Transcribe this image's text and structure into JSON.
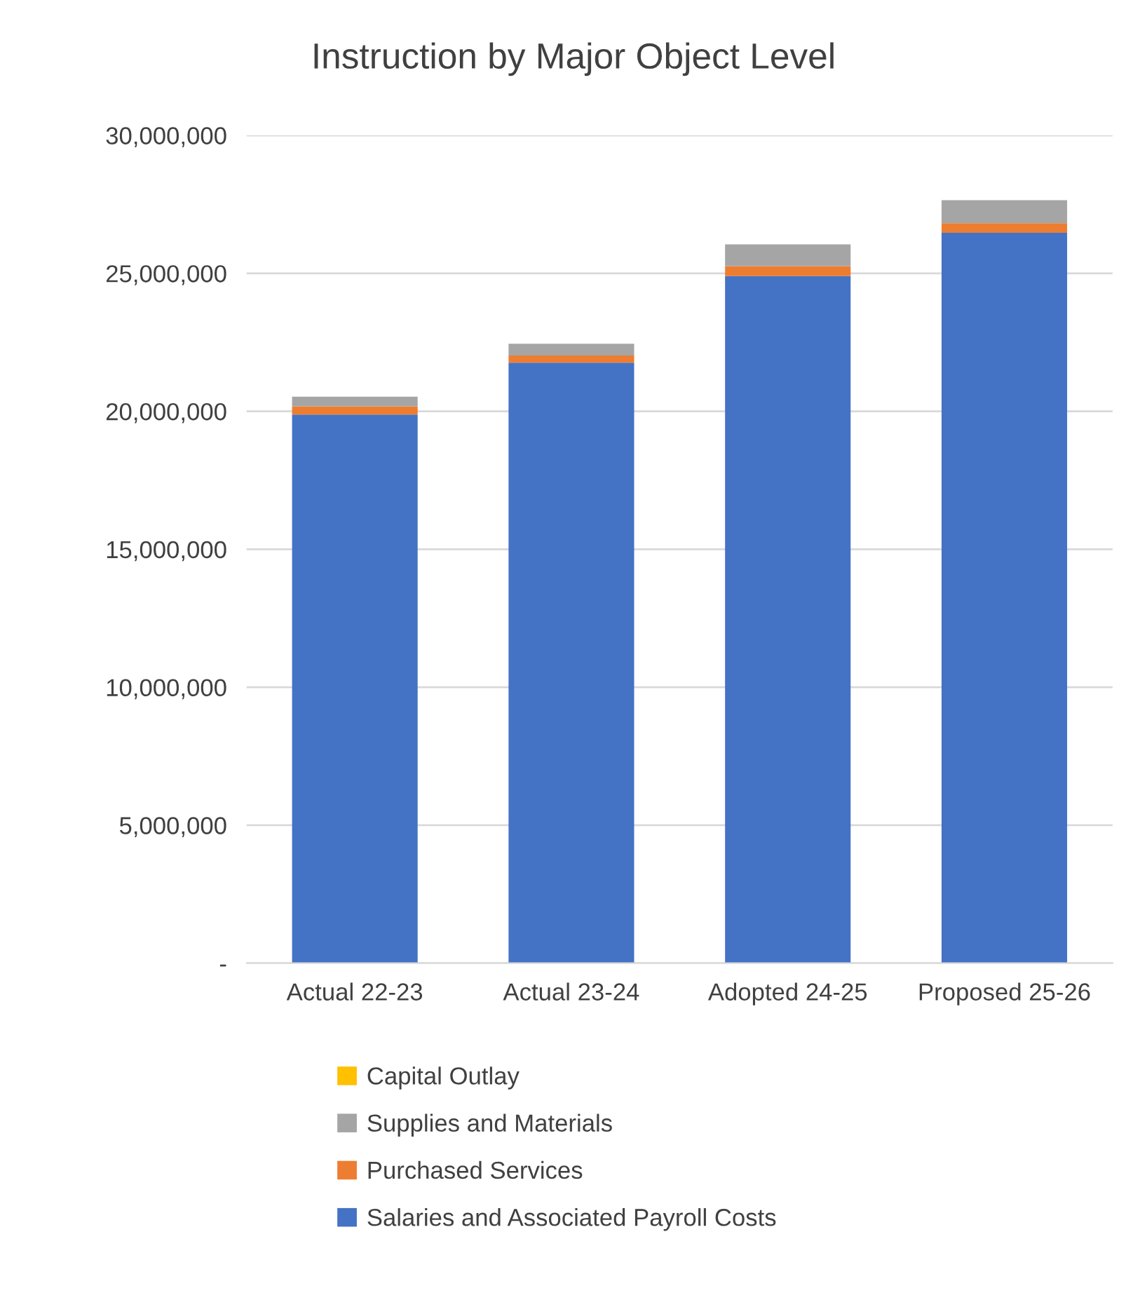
{
  "chart_data": {
    "type": "bar",
    "title": "Instruction by Major Object Level",
    "stacked": true,
    "categories": [
      "Actual 22-23",
      "Actual 23-24",
      "Adopted 24-25",
      "Proposed 25-26"
    ],
    "series": [
      {
        "name": "Salaries and Associated Payroll Costs",
        "color": "#4472c4",
        "values": [
          19880000,
          21760000,
          24900000,
          26470000
        ]
      },
      {
        "name": "Purchased Services",
        "color": "#ed7d31",
        "values": [
          300000,
          260000,
          360000,
          350000
        ]
      },
      {
        "name": "Supplies and Materials",
        "color": "#a5a5a5",
        "values": [
          350000,
          430000,
          790000,
          830000
        ]
      },
      {
        "name": "Capital Outlay",
        "color": "#ffc000",
        "values": [
          0,
          0,
          0,
          0
        ]
      }
    ],
    "ylim": [
      0,
      30000000
    ],
    "yticks": [
      {
        "value": 0,
        "label": "-"
      },
      {
        "value": 5000000,
        "label": "5,000,000"
      },
      {
        "value": 10000000,
        "label": "10,000,000"
      },
      {
        "value": 15000000,
        "label": "15,000,000"
      },
      {
        "value": 20000000,
        "label": "20,000,000"
      },
      {
        "value": 25000000,
        "label": "25,000,000"
      },
      {
        "value": 30000000,
        "label": "30,000,000"
      }
    ],
    "grid": "y",
    "legend": "bottom"
  }
}
